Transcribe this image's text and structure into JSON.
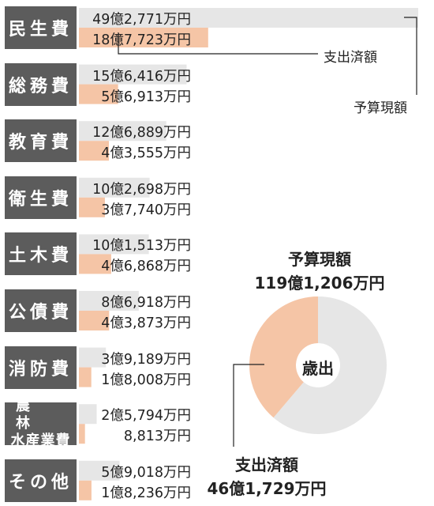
{
  "chart_data": [
    {
      "type": "bar",
      "categories": [
        "民生費",
        "総務費",
        "教育費",
        "衛生費",
        "土木費",
        "公債費",
        "消防費",
        "農林水産業費",
        "その他"
      ],
      "category_lines": [
        [
          "民生費"
        ],
        [
          "総務費"
        ],
        [
          "教育費"
        ],
        [
          "衛生費"
        ],
        [
          "土木費"
        ],
        [
          "公債費"
        ],
        [
          "消防費"
        ],
        [
          "農　林",
          "水産業費"
        ],
        [
          "その他"
        ]
      ],
      "series": [
        {
          "name": "予算現額",
          "color": "#e6e6e6",
          "values_man_yen": [
            492771,
            156416,
            126889,
            102698,
            101513,
            86918,
            39189,
            25794,
            59018
          ],
          "labels": [
            "49億2,771万円",
            "15億6,416万円",
            "12億6,889万円",
            "10億2,698万円",
            "10億1,513万円",
            "8億6,918万円",
            "3億9,189万円",
            "2億5,794万円",
            "5億9,018万円"
          ]
        },
        {
          "name": "支出済額",
          "color": "#f5c5a6",
          "values_man_yen": [
            187723,
            56913,
            43555,
            37740,
            46868,
            43873,
            18008,
            8813,
            18236
          ],
          "labels": [
            "18億7,723万円",
            "5億6,913万円",
            "4億3,555万円",
            "3億7,740万円",
            "4億6,868万円",
            "4億3,873万円",
            "1億8,008万円",
            "8,813万円",
            "1億8,236万円"
          ]
        }
      ]
    },
    {
      "type": "pie",
      "center_label": "歳出",
      "total_label": "予算現額",
      "total_value_text": "119億1,206万円",
      "spent_label": "支出済額",
      "spent_value_text": "46億1,729万円",
      "total_man_yen": 1191206,
      "spent_man_yen": 461729,
      "colors": {
        "spent": "#f5c5a6",
        "remaining": "#e6e6e6"
      }
    }
  ],
  "legend": {
    "budget": "予算現額",
    "spent": "支出済額"
  }
}
